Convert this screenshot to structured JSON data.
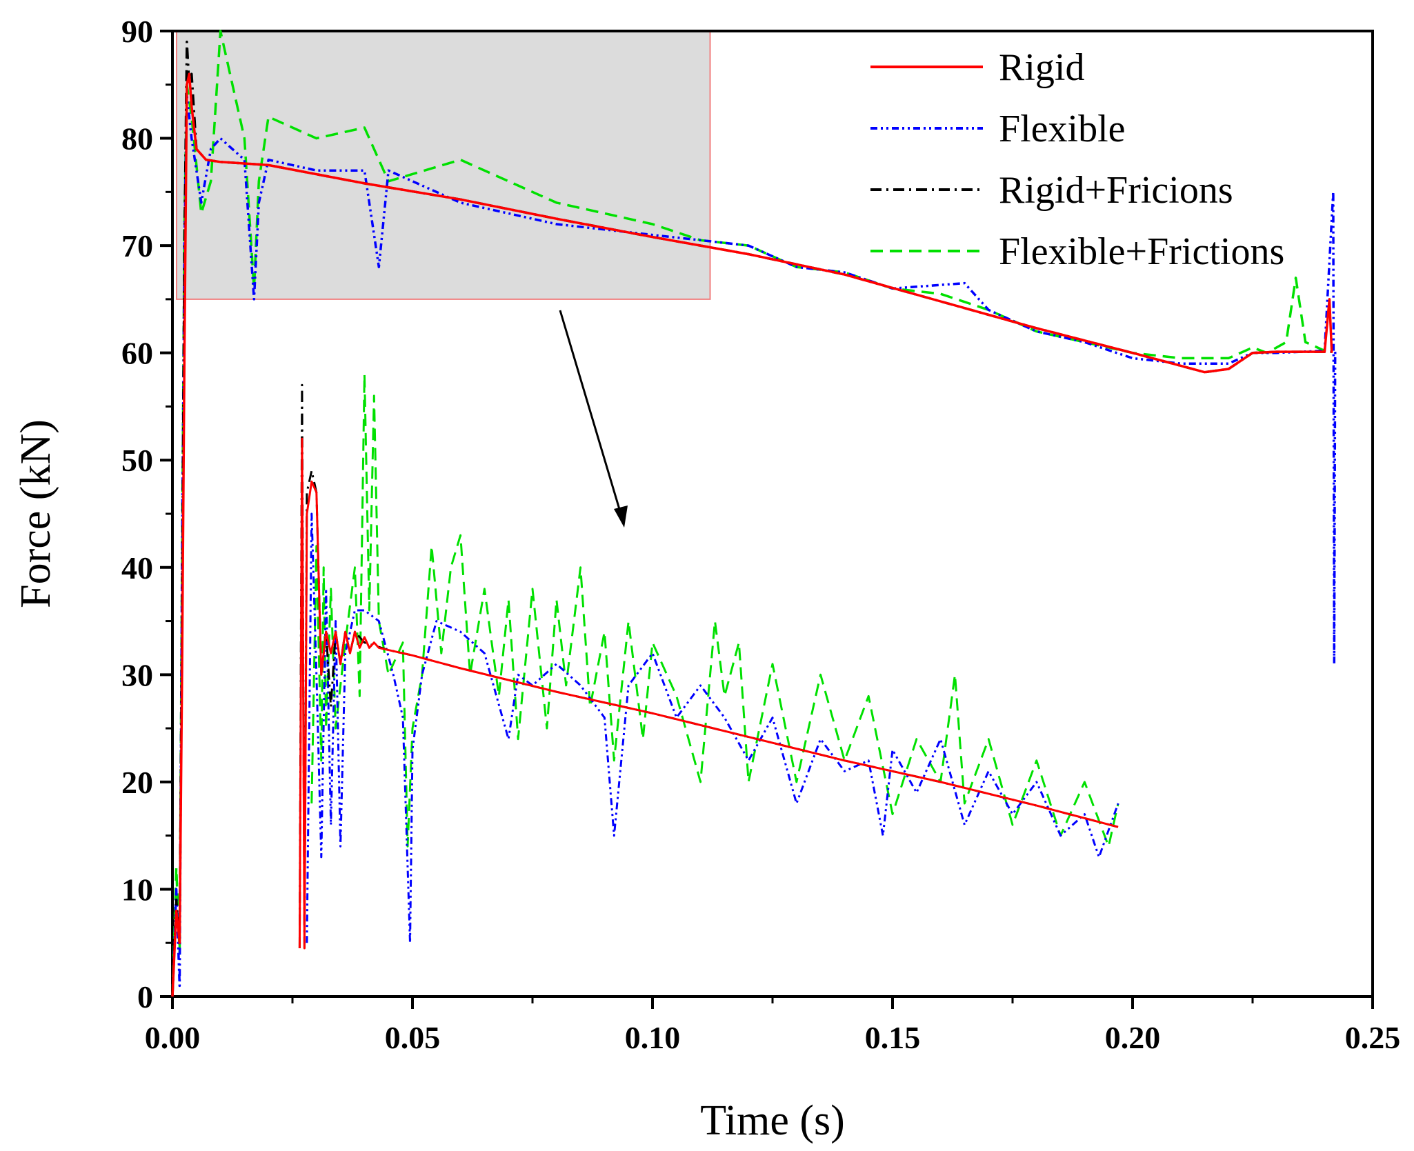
{
  "chart_data": {
    "type": "line",
    "title": "",
    "xlabel": "Time (s)",
    "ylabel": "Force (kN)",
    "xlim": [
      0,
      0.25
    ],
    "ylim": [
      0,
      90
    ],
    "xticks": [
      0.0,
      0.05,
      0.1,
      0.15,
      0.2,
      0.25
    ],
    "xtick_labels": [
      "0.00",
      "0.05",
      "0.10",
      "0.15",
      "0.20",
      "0.25"
    ],
    "yticks": [
      0,
      10,
      20,
      30,
      40,
      50,
      60,
      70,
      80,
      90
    ],
    "ytick_labels": [
      "0",
      "10",
      "20",
      "30",
      "40",
      "50",
      "60",
      "70",
      "80",
      "90"
    ],
    "legend_position": "top-right",
    "zoom_box": {
      "x_range": [
        0.0,
        0.112
      ],
      "y_range": [
        65,
        90
      ],
      "note": "highlighted region shown enlarged in lower inset"
    },
    "series": [
      {
        "name": "Rigid",
        "color": "#ff0000",
        "style": "solid",
        "x": [
          0.0,
          0.0008,
          0.0015,
          0.002,
          0.0025,
          0.003,
          0.0035,
          0.004,
          0.005,
          0.007,
          0.01,
          0.02,
          0.04,
          0.06,
          0.08,
          0.1,
          0.11,
          0.12,
          0.14,
          0.16,
          0.18,
          0.2,
          0.21,
          0.215,
          0.22,
          0.225,
          0.23,
          0.235,
          0.24,
          0.241,
          0.2415
        ],
        "y": [
          0,
          8,
          5,
          30,
          60,
          85,
          86,
          83,
          79,
          78,
          77.8,
          77.5,
          75.8,
          74.3,
          72.5,
          70.8,
          70.0,
          69.2,
          67.3,
          64.8,
          62.3,
          60.0,
          58.8,
          58.2,
          58.5,
          60.0,
          60.1,
          60.1,
          60.1,
          65,
          60
        ]
      },
      {
        "name": "Flexible",
        "color": "#0000ff",
        "style": "dash-dot-dot",
        "x": [
          0.0,
          0.0008,
          0.0015,
          0.002,
          0.0025,
          0.003,
          0.004,
          0.006,
          0.008,
          0.01,
          0.015,
          0.017,
          0.018,
          0.02,
          0.03,
          0.04,
          0.043,
          0.045,
          0.06,
          0.08,
          0.1,
          0.11,
          0.12,
          0.13,
          0.14,
          0.15,
          0.165,
          0.17,
          0.18,
          0.19,
          0.2,
          0.21,
          0.22,
          0.225,
          0.23,
          0.24,
          0.2418,
          0.242,
          0.2422,
          0.2425
        ],
        "y": [
          0,
          10,
          1,
          40,
          70,
          84,
          80,
          74,
          79,
          80,
          78,
          65,
          74,
          78,
          77,
          77,
          68,
          77,
          74,
          72,
          71,
          70.5,
          70,
          68,
          67.5,
          66,
          66.5,
          64,
          62,
          61,
          59.5,
          59,
          59,
          60,
          60,
          60.2,
          75,
          31,
          60,
          60
        ]
      },
      {
        "name": "Rigid+Fricions",
        "color": "#000000",
        "style": "dash-dot",
        "x": [
          0.0,
          0.0008,
          0.0015,
          0.002,
          0.0025,
          0.003,
          0.0035,
          0.004,
          0.005,
          0.007,
          0.01,
          0.02,
          0.04,
          0.06,
          0.08,
          0.1,
          0.11,
          0.12,
          0.14,
          0.16,
          0.18,
          0.2,
          0.21,
          0.215,
          0.22,
          0.225,
          0.23,
          0.24,
          0.2415
        ],
        "y": [
          0,
          9,
          5,
          35,
          70,
          89,
          85,
          86,
          79,
          78,
          77.8,
          77.5,
          75.8,
          74.3,
          72.5,
          70.8,
          70.0,
          69.2,
          67.3,
          64.8,
          62.3,
          60.0,
          58.8,
          58.2,
          58.5,
          60.0,
          60.1,
          60.1,
          60.1
        ]
      },
      {
        "name": "Flexible+Frictions",
        "color": "#00e000",
        "style": "dashed",
        "x": [
          0.0,
          0.0008,
          0.0015,
          0.002,
          0.0025,
          0.003,
          0.004,
          0.006,
          0.008,
          0.01,
          0.012,
          0.015,
          0.017,
          0.018,
          0.02,
          0.03,
          0.04,
          0.045,
          0.06,
          0.08,
          0.09,
          0.1,
          0.11,
          0.12,
          0.13,
          0.14,
          0.15,
          0.16,
          0.17,
          0.18,
          0.19,
          0.2,
          0.21,
          0.22,
          0.225,
          0.228,
          0.232,
          0.234,
          0.236,
          0.24
        ],
        "y": [
          0,
          12,
          4,
          40,
          72,
          85,
          82,
          73,
          76,
          90,
          86,
          80,
          66,
          76,
          82,
          80,
          81,
          76,
          78,
          74,
          73,
          72,
          70.5,
          70,
          68,
          67.5,
          66,
          65.5,
          64,
          62,
          61,
          60,
          59.5,
          59.5,
          60.5,
          60,
          61,
          67,
          61,
          60.2
        ]
      }
    ],
    "inset_series": [
      {
        "name": "Rigid",
        "color": "#ff0000",
        "style": "solid",
        "x": [
          0.0265,
          0.027,
          0.0275,
          0.028,
          0.029,
          0.03,
          0.031,
          0.032,
          0.033,
          0.034,
          0.035,
          0.036,
          0.037,
          0.038,
          0.039,
          0.04,
          0.041,
          0.042,
          0.043,
          0.045,
          0.05,
          0.06,
          0.08,
          0.1,
          0.12,
          0.14,
          0.16,
          0.18,
          0.197
        ],
        "y": [
          4.5,
          52,
          4.5,
          45,
          48,
          47,
          30,
          34,
          32,
          34,
          31,
          34,
          32,
          34,
          32.5,
          33.5,
          32.5,
          33,
          32.5,
          32.3,
          31.8,
          30.6,
          28.4,
          26.4,
          24.2,
          22.0,
          20.0,
          17.8,
          15.8
        ]
      },
      {
        "name": "Flexible",
        "color": "#0000ff",
        "style": "dash-dot-dot",
        "x": [
          0.028,
          0.029,
          0.03,
          0.031,
          0.032,
          0.033,
          0.034,
          0.035,
          0.036,
          0.038,
          0.04,
          0.043,
          0.046,
          0.048,
          0.0495,
          0.05,
          0.052,
          0.055,
          0.06,
          0.065,
          0.07,
          0.072,
          0.075,
          0.08,
          0.085,
          0.09,
          0.092,
          0.095,
          0.1,
          0.105,
          0.11,
          0.115,
          0.12,
          0.125,
          0.13,
          0.135,
          0.14,
          0.145,
          0.148,
          0.15,
          0.155,
          0.16,
          0.165,
          0.17,
          0.175,
          0.18,
          0.185,
          0.19,
          0.193,
          0.197
        ],
        "y": [
          5,
          45,
          30,
          13,
          38,
          16,
          35,
          14,
          32,
          36,
          36,
          35,
          30,
          26,
          5,
          23,
          30,
          35,
          34,
          32,
          24,
          30,
          29,
          31,
          29,
          26,
          15,
          29,
          32,
          26,
          29,
          26,
          22,
          26,
          18,
          24,
          21,
          22,
          15,
          23,
          19,
          24,
          16,
          21,
          17,
          20,
          15,
          17,
          13,
          18
        ]
      },
      {
        "name": "Rigid+Fricions",
        "color": "#000000",
        "style": "dash-dot",
        "x": [
          0.0265,
          0.027,
          0.0275,
          0.028,
          0.029,
          0.03,
          0.031,
          0.032,
          0.033,
          0.034,
          0.035,
          0.036,
          0.037,
          0.038,
          0.04,
          0.045,
          0.05,
          0.06,
          0.08,
          0.1,
          0.12,
          0.14,
          0.16,
          0.18,
          0.197
        ],
        "y": [
          4.5,
          57,
          4.5,
          47,
          49,
          47,
          30,
          34,
          27,
          34,
          31,
          34,
          32,
          34,
          33,
          32.3,
          31.8,
          30.6,
          28.4,
          26.4,
          24.2,
          22.0,
          20.0,
          17.8,
          15.8
        ]
      },
      {
        "name": "Flexible+Frictions",
        "color": "#00e000",
        "style": "dashed",
        "x": [
          0.029,
          0.03,
          0.031,
          0.0315,
          0.032,
          0.033,
          0.034,
          0.036,
          0.038,
          0.039,
          0.04,
          0.041,
          0.042,
          0.043,
          0.045,
          0.048,
          0.049,
          0.05,
          0.052,
          0.054,
          0.056,
          0.058,
          0.06,
          0.062,
          0.065,
          0.068,
          0.07,
          0.072,
          0.075,
          0.078,
          0.08,
          0.082,
          0.085,
          0.087,
          0.09,
          0.092,
          0.095,
          0.098,
          0.1,
          0.105,
          0.11,
          0.113,
          0.115,
          0.118,
          0.12,
          0.125,
          0.13,
          0.135,
          0.14,
          0.145,
          0.15,
          0.155,
          0.16,
          0.163,
          0.165,
          0.17,
          0.175,
          0.18,
          0.185,
          0.19,
          0.195,
          0.197
        ],
        "y": [
          18,
          42,
          22,
          40,
          25,
          38,
          25,
          33,
          40,
          28,
          58,
          36,
          56,
          35,
          30,
          33,
          14,
          25,
          30,
          42,
          32,
          40,
          43,
          30,
          38,
          28,
          37,
          24,
          38,
          25,
          37,
          29,
          40,
          27,
          34,
          22,
          35,
          24,
          33,
          28,
          20,
          35,
          28,
          33,
          20,
          31,
          20,
          30,
          22,
          28,
          17,
          24,
          20,
          30,
          18,
          24,
          16,
          22,
          15,
          20,
          14,
          18
        ]
      }
    ],
    "inset_mapping": {
      "inset_x_range": [
        0.026,
        0.198
      ],
      "inset_y_range": [
        4,
        58
      ]
    }
  }
}
